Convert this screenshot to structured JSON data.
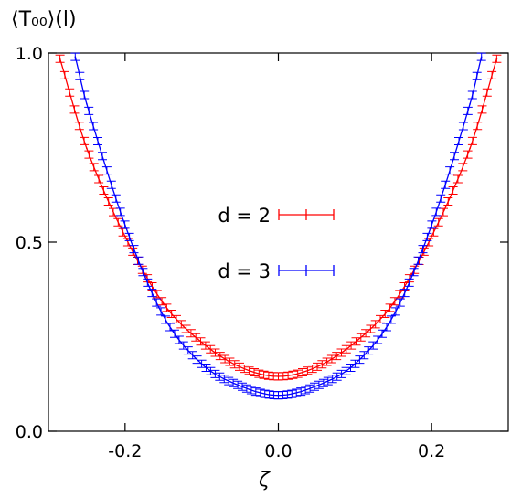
{
  "chart_data": {
    "type": "line",
    "title": "",
    "ylabel": "⟨T₀₀⟩(l)",
    "xlabel": "ζ",
    "xlim": [
      -0.3,
      0.3
    ],
    "ylim": [
      0.0,
      1.0
    ],
    "x_ticks": [
      -0.2,
      0.0,
      0.2
    ],
    "x_tick_labels": [
      "-0.2",
      "0.0",
      "0.2"
    ],
    "y_ticks": [
      0.0,
      0.5,
      1.0
    ],
    "y_tick_labels": [
      "0.0",
      "0.5",
      "1.0"
    ],
    "grid": false,
    "legend_position": "center",
    "series": [
      {
        "name": "d = 2",
        "color": "#ff0000",
        "style": "line-with-errorbars",
        "x": [
          -0.285,
          -0.25,
          -0.2,
          -0.15,
          -0.1,
          -0.05,
          0.0,
          0.05,
          0.1,
          0.15,
          0.2,
          0.25,
          0.285
        ],
        "values": [
          0.985,
          0.748,
          0.515,
          0.338,
          0.235,
          0.17,
          0.145,
          0.17,
          0.235,
          0.338,
          0.515,
          0.748,
          0.985
        ]
      },
      {
        "name": "d = 3",
        "color": "#0000ff",
        "style": "line-with-errorbars",
        "x": [
          -0.265,
          -0.25,
          -0.2,
          -0.15,
          -0.1,
          -0.05,
          0.0,
          0.05,
          0.1,
          0.15,
          0.2,
          0.25,
          0.265
        ],
        "values": [
          0.99,
          0.865,
          0.545,
          0.305,
          0.178,
          0.12,
          0.095,
          0.12,
          0.178,
          0.305,
          0.545,
          0.865,
          0.99
        ]
      }
    ]
  }
}
